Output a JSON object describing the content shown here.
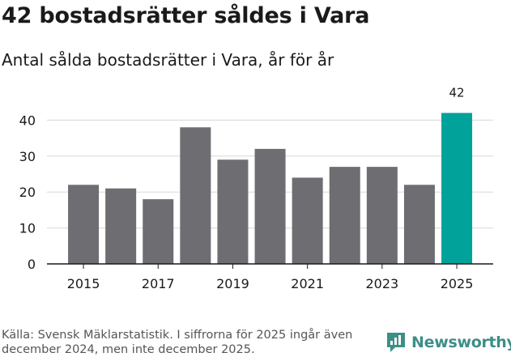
{
  "header": {
    "title": "42 bostadsrätter såldes i Vara",
    "subtitle": "Antal sålda bostadsrätter i Vara, år för år"
  },
  "footer": {
    "source": "Källa: Svensk Mäklarstatistik. I siffrorna för 2025 ingår även december 2024, men inte december 2025.",
    "brand": "Newsworthy",
    "brand_icon": "newsworthy-logo-icon"
  },
  "colors": {
    "bar": "#6e6d72",
    "highlight": "#00a299",
    "grid": "#d8d8d8",
    "axis": "#1a1a1a"
  },
  "chart_data": {
    "type": "bar",
    "title": "Antal sålda bostadsrätter i Vara, år för år",
    "categories": [
      "2015",
      "2016",
      "2017",
      "2018",
      "2019",
      "2020",
      "2021",
      "2022",
      "2023",
      "2024",
      "2025"
    ],
    "values": [
      22,
      21,
      18,
      38,
      29,
      32,
      24,
      27,
      27,
      22,
      42
    ],
    "x_tick_labels": [
      "2015",
      "2017",
      "2019",
      "2021",
      "2023",
      "2025"
    ],
    "y_ticks": [
      0,
      10,
      20,
      30,
      40
    ],
    "ylim": [
      0,
      45
    ],
    "highlight_category": "2025",
    "data_labels": [
      {
        "category": "2025",
        "text": "42"
      }
    ],
    "xlabel": "",
    "ylabel": "",
    "grid": true
  }
}
